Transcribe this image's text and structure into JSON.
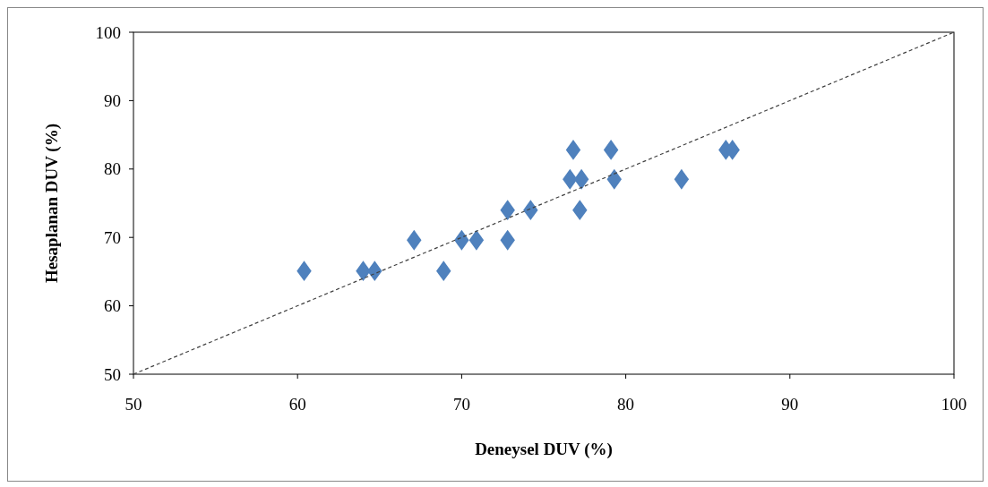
{
  "chart_data": {
    "type": "scatter",
    "xlabel": "Deneysel DUV (%)",
    "ylabel": "Hesaplanan DUV (%)",
    "xlim": [
      50,
      100
    ],
    "ylim": [
      50,
      100
    ],
    "xticks": [
      50,
      60,
      70,
      80,
      90,
      100
    ],
    "yticks": [
      50,
      60,
      70,
      80,
      90,
      100
    ],
    "grid": false,
    "marker": "diamond",
    "series": [
      {
        "color": "#4f81bd",
        "x": [
          60.4,
          64.0,
          64.7,
          68.9,
          67.1,
          70.0,
          70.9,
          72.8,
          72.8,
          74.2,
          77.2,
          76.8,
          79.1,
          76.6,
          77.3,
          79.3,
          83.4,
          86.1,
          86.5
        ],
        "values": [
          65.1,
          65.1,
          65.1,
          65.1,
          69.6,
          69.6,
          69.6,
          69.6,
          74.0,
          74.0,
          74.0,
          82.8,
          82.8,
          78.5,
          78.5,
          78.5,
          78.5,
          82.8,
          82.8
        ]
      },
      {
        "type": "line",
        "color": "#404040",
        "line_style": "dashed",
        "marker": "none",
        "x": [
          50,
          100
        ],
        "values": [
          50,
          100
        ]
      }
    ]
  }
}
